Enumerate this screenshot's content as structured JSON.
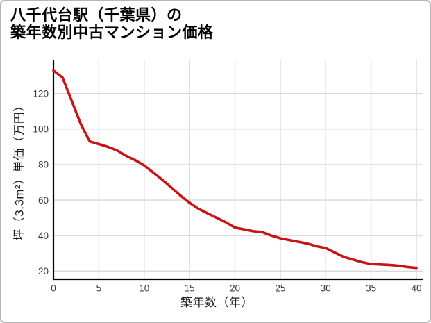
{
  "page": {
    "background": "#ffffff",
    "border_color": "#b5b5b5"
  },
  "title": {
    "line1": "八千代台駅（千葉県）の",
    "line2": "築年数別中古マンション価格"
  },
  "chart_data": {
    "type": "line",
    "title": "八千代台駅（千葉県）の築年数別中古マンション価格",
    "xlabel": "築年数（年）",
    "ylabel": "坪（3.3m²）単価（万円）",
    "x": [
      0,
      1,
      2,
      3,
      4,
      5,
      6,
      7,
      8,
      9,
      10,
      11,
      12,
      13,
      14,
      15,
      16,
      17,
      18,
      19,
      20,
      21,
      22,
      23,
      24,
      25,
      26,
      27,
      28,
      29,
      30,
      31,
      32,
      33,
      34,
      35,
      36,
      37,
      38,
      39,
      40
    ],
    "series": [
      {
        "name": "坪単価（万円）",
        "values": [
          133,
          129,
          116,
          103,
          93,
          91.5,
          90,
          88,
          85,
          82.5,
          79.5,
          75.5,
          71.5,
          67,
          62.5,
          58.5,
          55,
          52.5,
          50,
          47.5,
          44.5,
          43.5,
          42.5,
          42,
          40,
          38.5,
          37.5,
          36.5,
          35.5,
          34,
          33,
          30.5,
          28,
          26.5,
          25,
          24,
          23.7,
          23.5,
          23,
          22.3,
          21.8
        ]
      }
    ],
    "x_ticks": [
      0,
      5,
      10,
      15,
      20,
      25,
      30,
      35,
      40
    ],
    "y_ticks": [
      20,
      40,
      60,
      80,
      100,
      120
    ],
    "xlim": [
      0,
      40.7
    ],
    "ylim": [
      15.4,
      138.6
    ],
    "grid": true,
    "legend": false,
    "line_color": "#c81414",
    "grid_color": "#d8d8d8",
    "axis_color": "#000000",
    "tick_label_color": "#3a3a3a"
  }
}
